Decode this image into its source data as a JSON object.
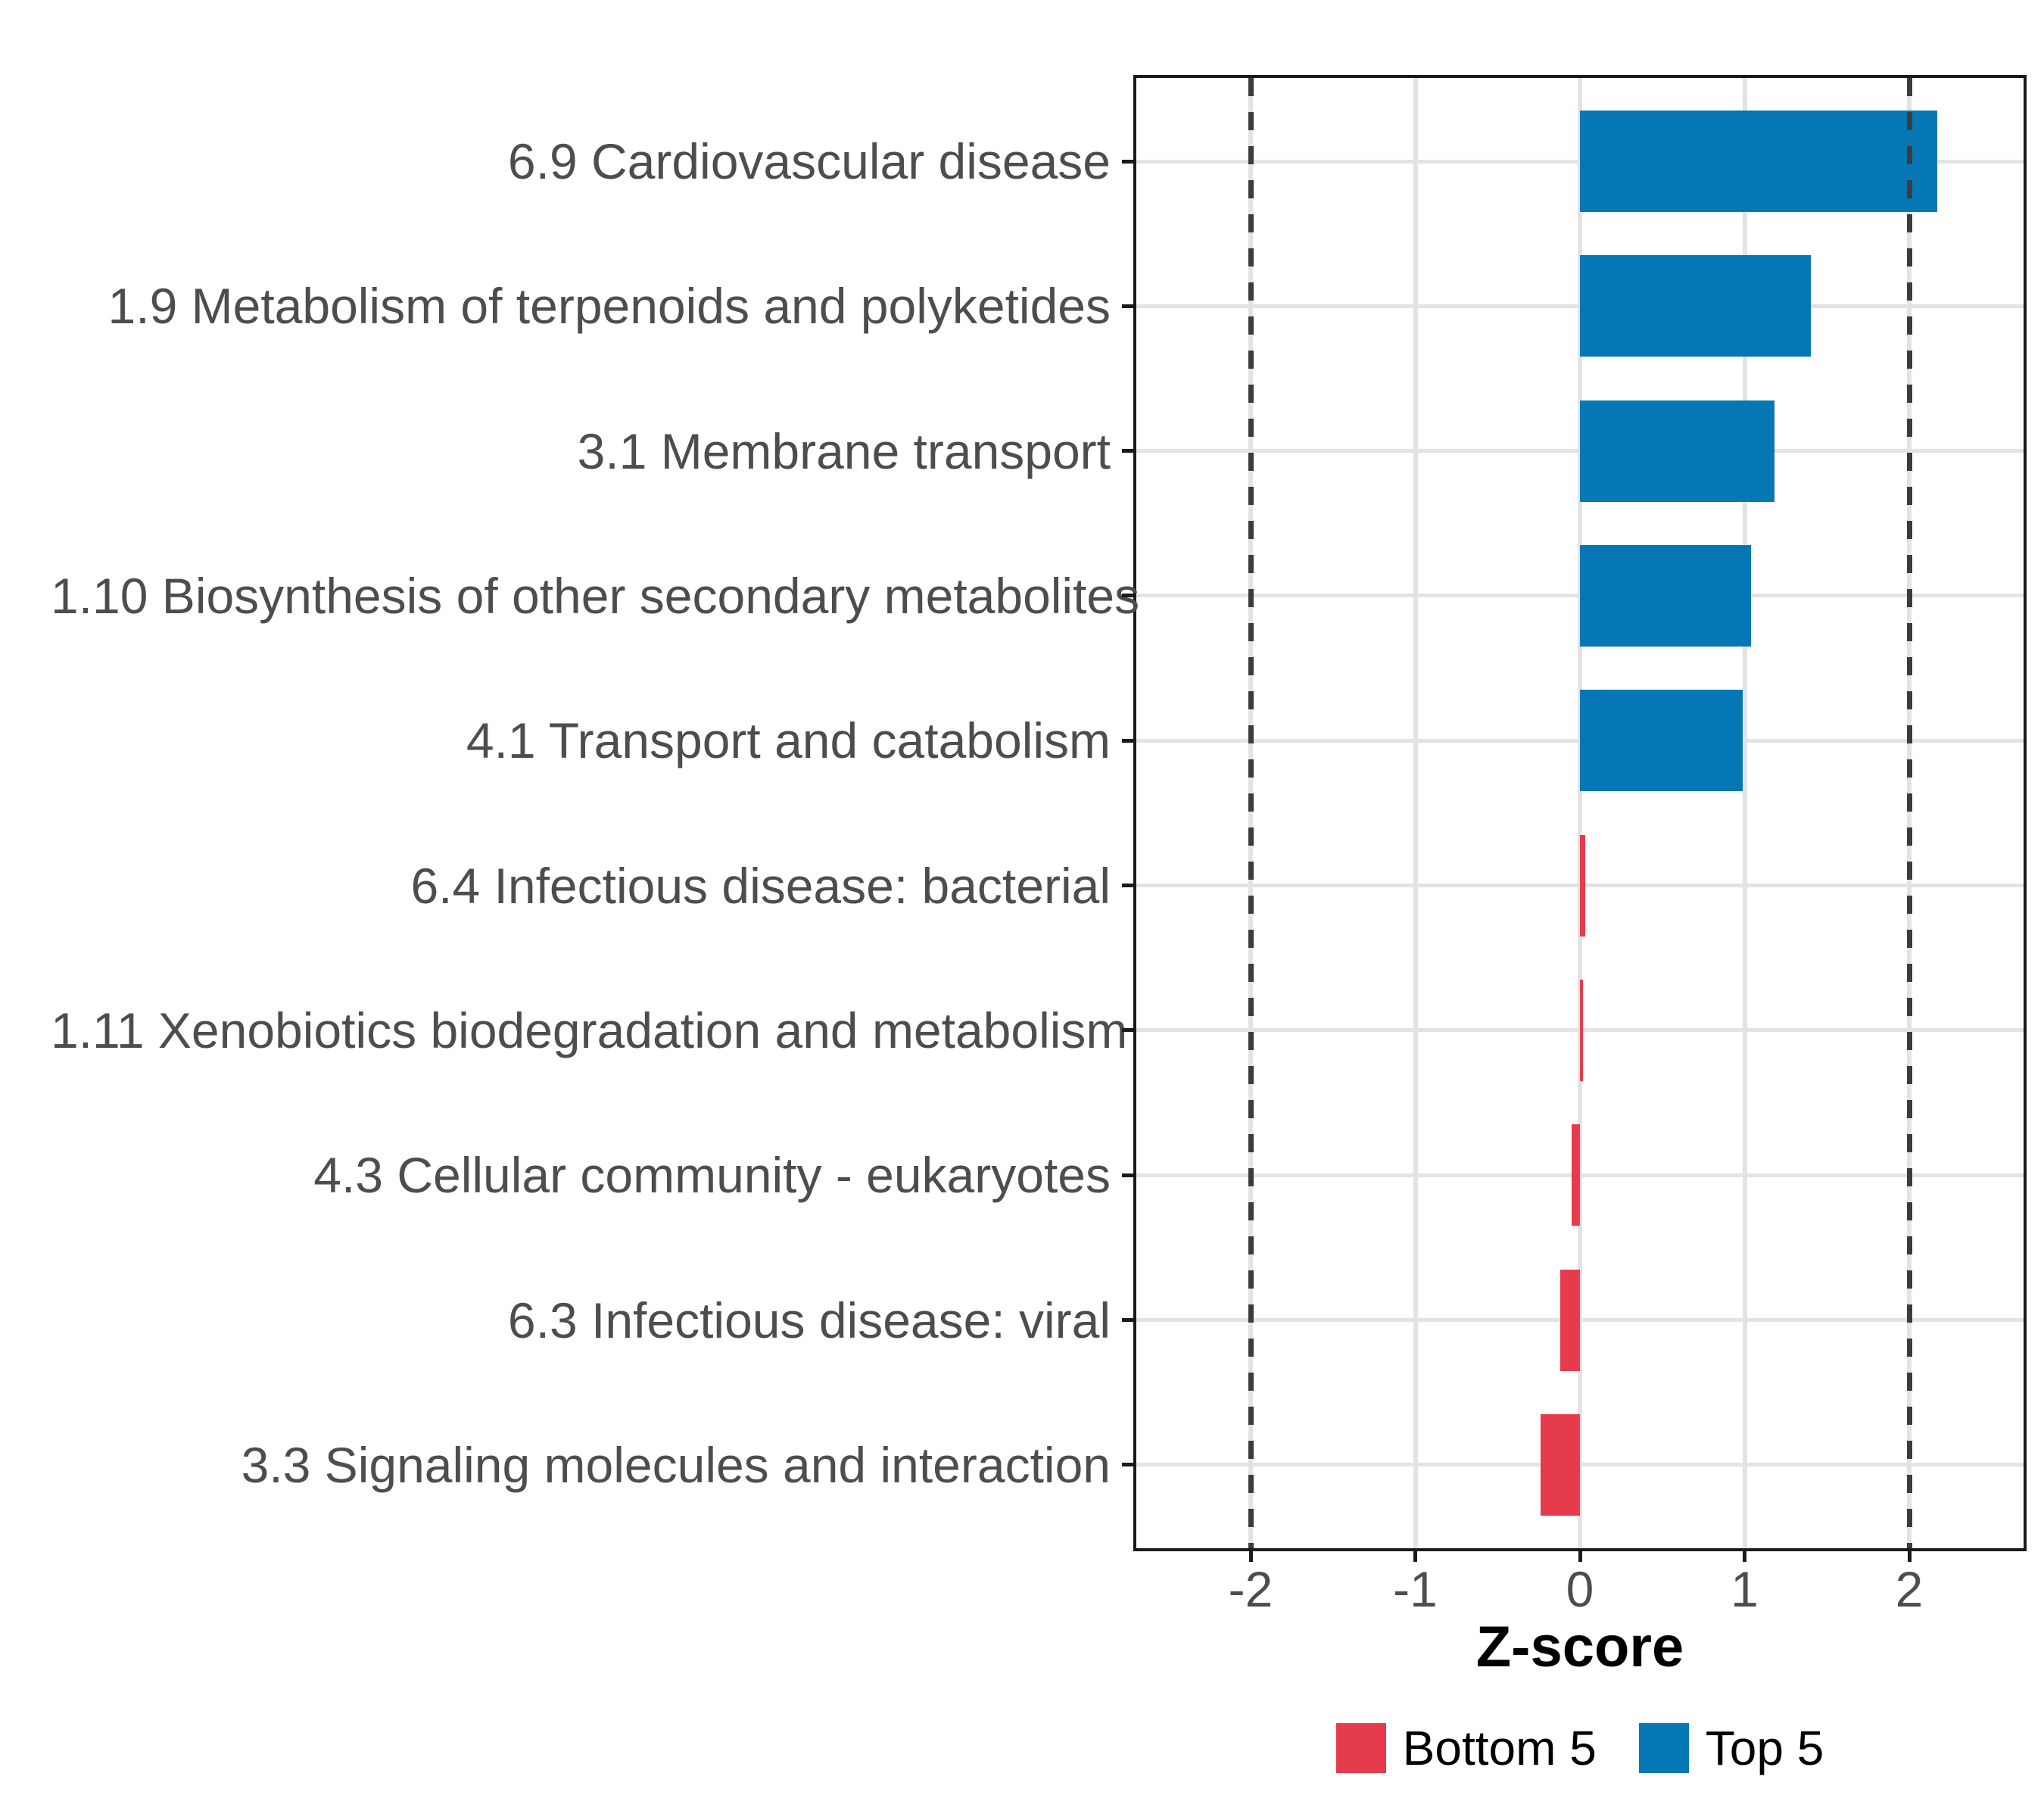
{
  "chart_data": {
    "type": "bar",
    "orientation": "horizontal",
    "xlabel": "Z-score",
    "ylabel": "",
    "xlim": [
      -2.71,
      2.71
    ],
    "x_ticks": [
      -2,
      -1,
      0,
      1,
      2
    ],
    "reference_dashed_lines_x": [
      -2,
      2
    ],
    "grid": "major-only",
    "legend_position": "bottom",
    "categories": [
      "6.9 Cardiovascular disease",
      "1.9 Metabolism of terpenoids and polyketides",
      "3.1 Membrane transport",
      "1.10 Biosynthesis of other secondary metabolites",
      "4.1 Transport and catabolism",
      "6.4 Infectious disease: bacterial",
      "1.11 Xenobiotics biodegradation and metabolism",
      "4.3 Cellular community - eukaryotes",
      "6.3 Infectious disease: viral",
      "3.3 Signaling molecules and interaction"
    ],
    "values": [
      2.17,
      1.4,
      1.18,
      1.04,
      0.99,
      0.03,
      0.02,
      -0.05,
      -0.12,
      -0.24
    ],
    "groups": [
      "top",
      "top",
      "top",
      "top",
      "top",
      "bottom",
      "bottom",
      "bottom",
      "bottom",
      "bottom"
    ],
    "legend": [
      {
        "id": "bottom",
        "label": "Bottom 5",
        "color": "#e63b4d"
      },
      {
        "id": "top",
        "label": "Top 5",
        "color": "#0477b4"
      }
    ]
  },
  "colors": {
    "bar_top": "#0477b4",
    "bar_bottom": "#e63b4d",
    "grid": "#e3e3e3",
    "dashed_line": "#3c3c3c",
    "panel_border": "#1a1a1a",
    "axis_text": "#4d4d4d",
    "axis_title": "#000000",
    "background": "#ffffff"
  }
}
